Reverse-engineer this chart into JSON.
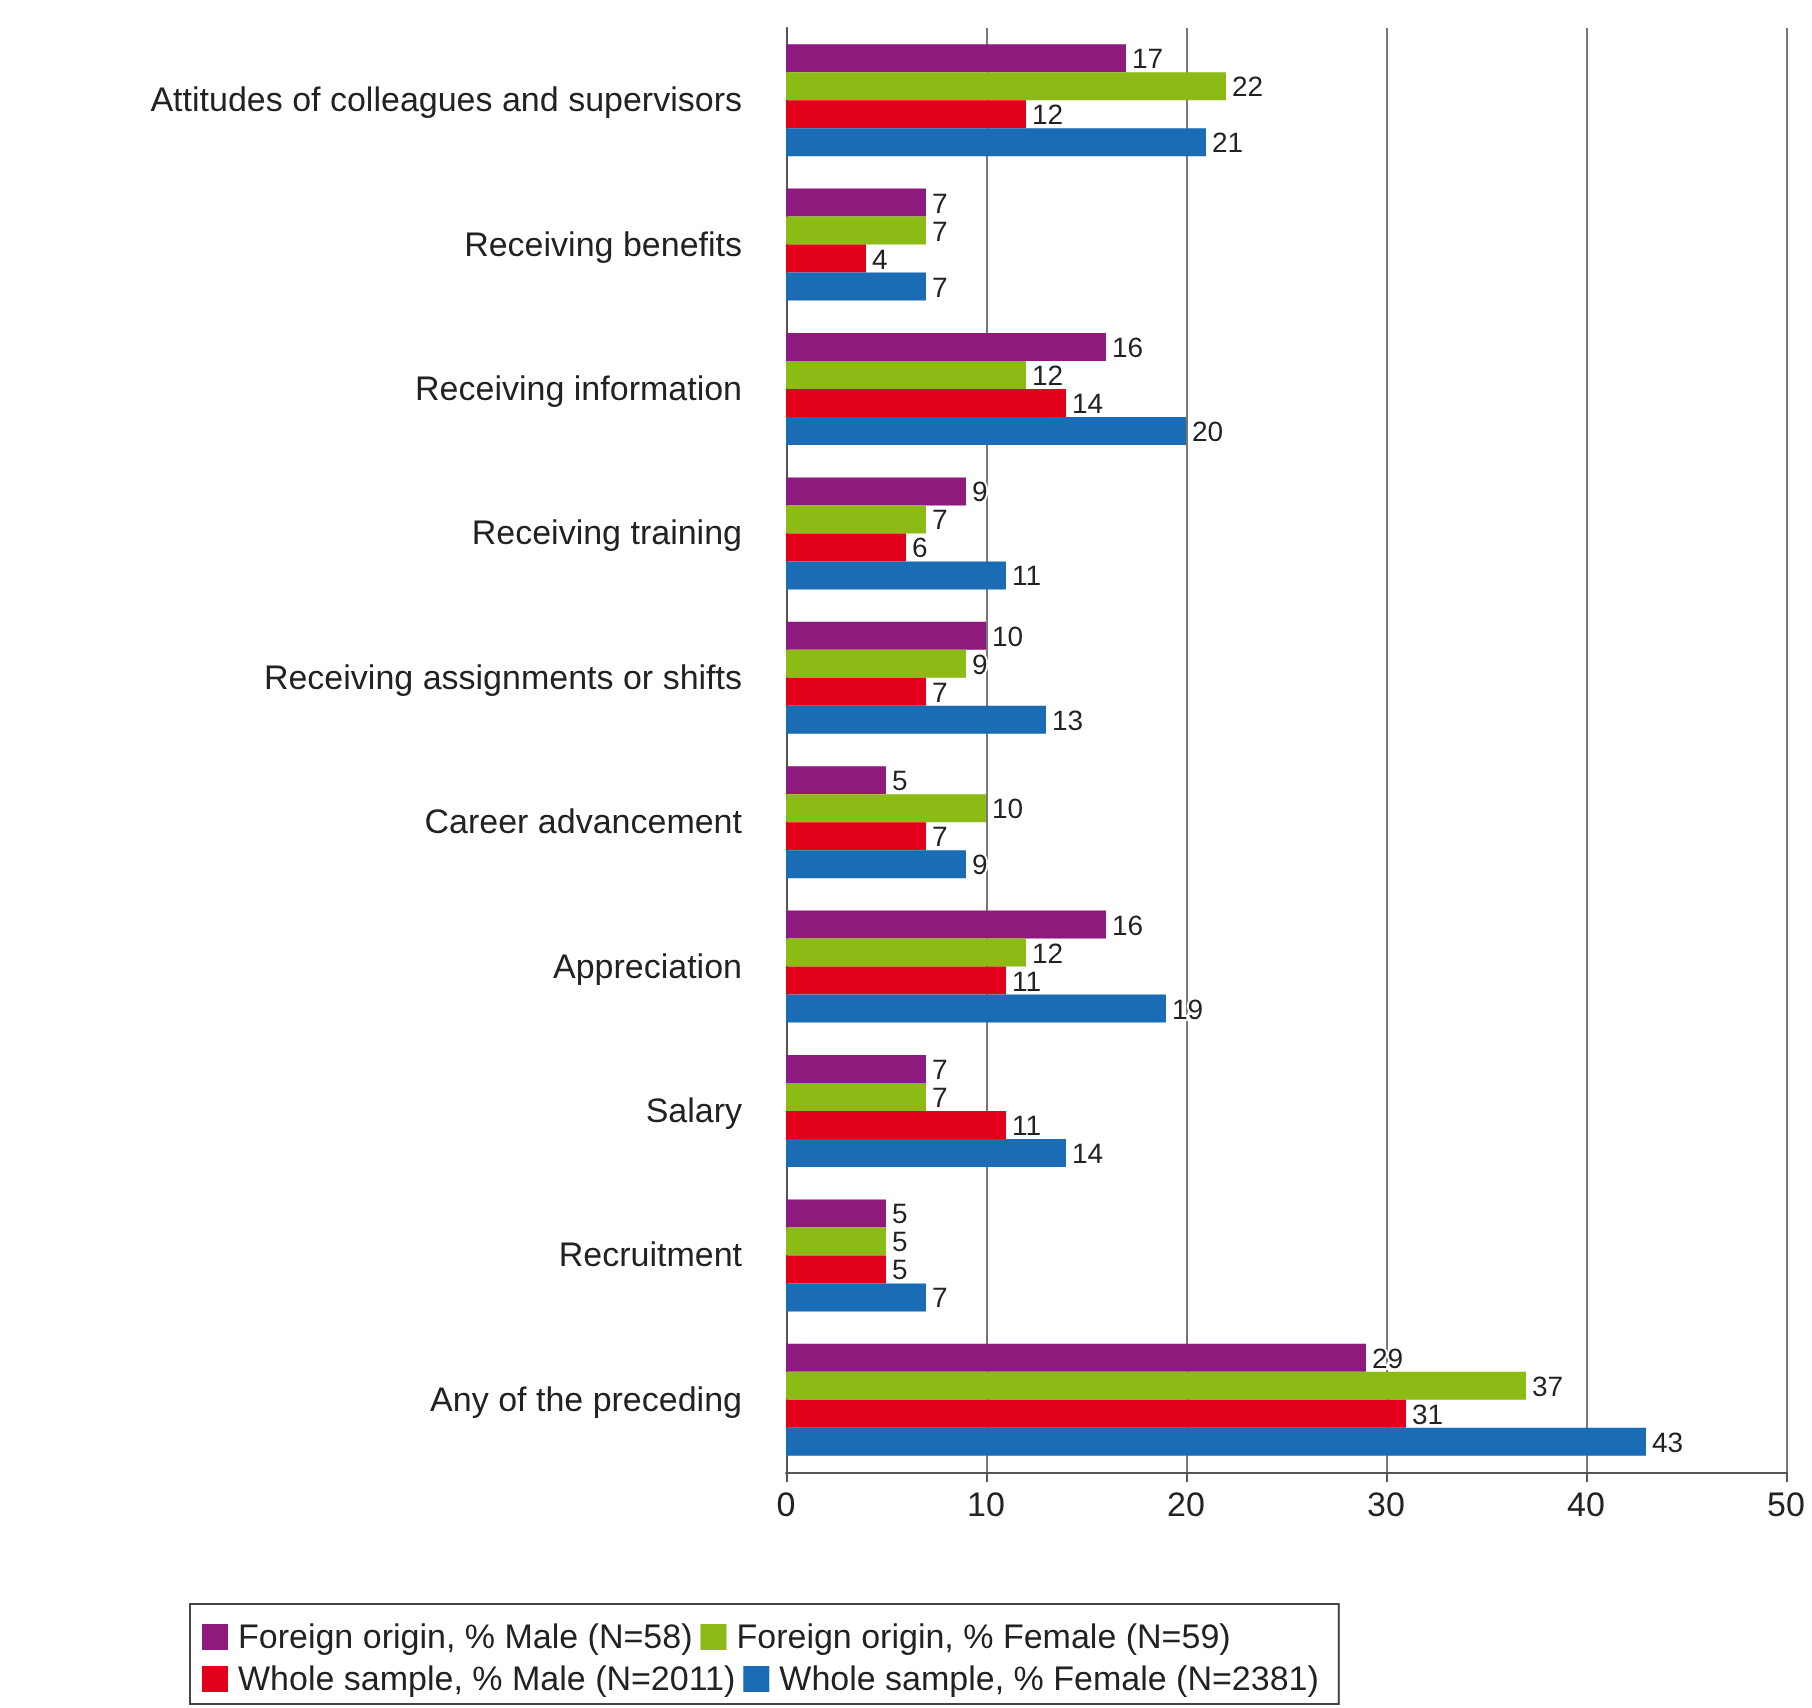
{
  "chart_data": {
    "type": "bar",
    "orientation": "horizontal",
    "categories": [
      "Attitudes of colleagues and supervisors",
      "Receiving benefits",
      "Receiving information",
      "Receiving training",
      "Receiving assignments or shifts",
      "Career advancement",
      "Appreciation",
      "Salary",
      "Recruitment",
      "Any of the preceding"
    ],
    "series": [
      {
        "name": "Foreign origin, % Male (N=58)",
        "color": "#8e1a7e",
        "values": [
          17,
          7,
          16,
          9,
          10,
          5,
          16,
          7,
          5,
          29
        ]
      },
      {
        "name": "Foreign origin, % Female (N=59)",
        "color": "#8dbb16",
        "values": [
          22,
          7,
          12,
          7,
          9,
          10,
          12,
          7,
          5,
          37
        ]
      },
      {
        "name": "Whole sample, % Male (N=2011)",
        "color": "#e2001a",
        "values": [
          12,
          4,
          14,
          6,
          7,
          7,
          11,
          11,
          5,
          31
        ]
      },
      {
        "name": "Whole sample, % Female (N=2381)",
        "color": "#1a6db4",
        "values": [
          21,
          7,
          20,
          11,
          13,
          9,
          19,
          14,
          7,
          43
        ]
      }
    ],
    "xlim": [
      0,
      50
    ],
    "xticks": [
      0,
      10,
      20,
      30,
      40,
      50
    ],
    "grid": "x",
    "data_labels": true,
    "legend": "bottom"
  }
}
